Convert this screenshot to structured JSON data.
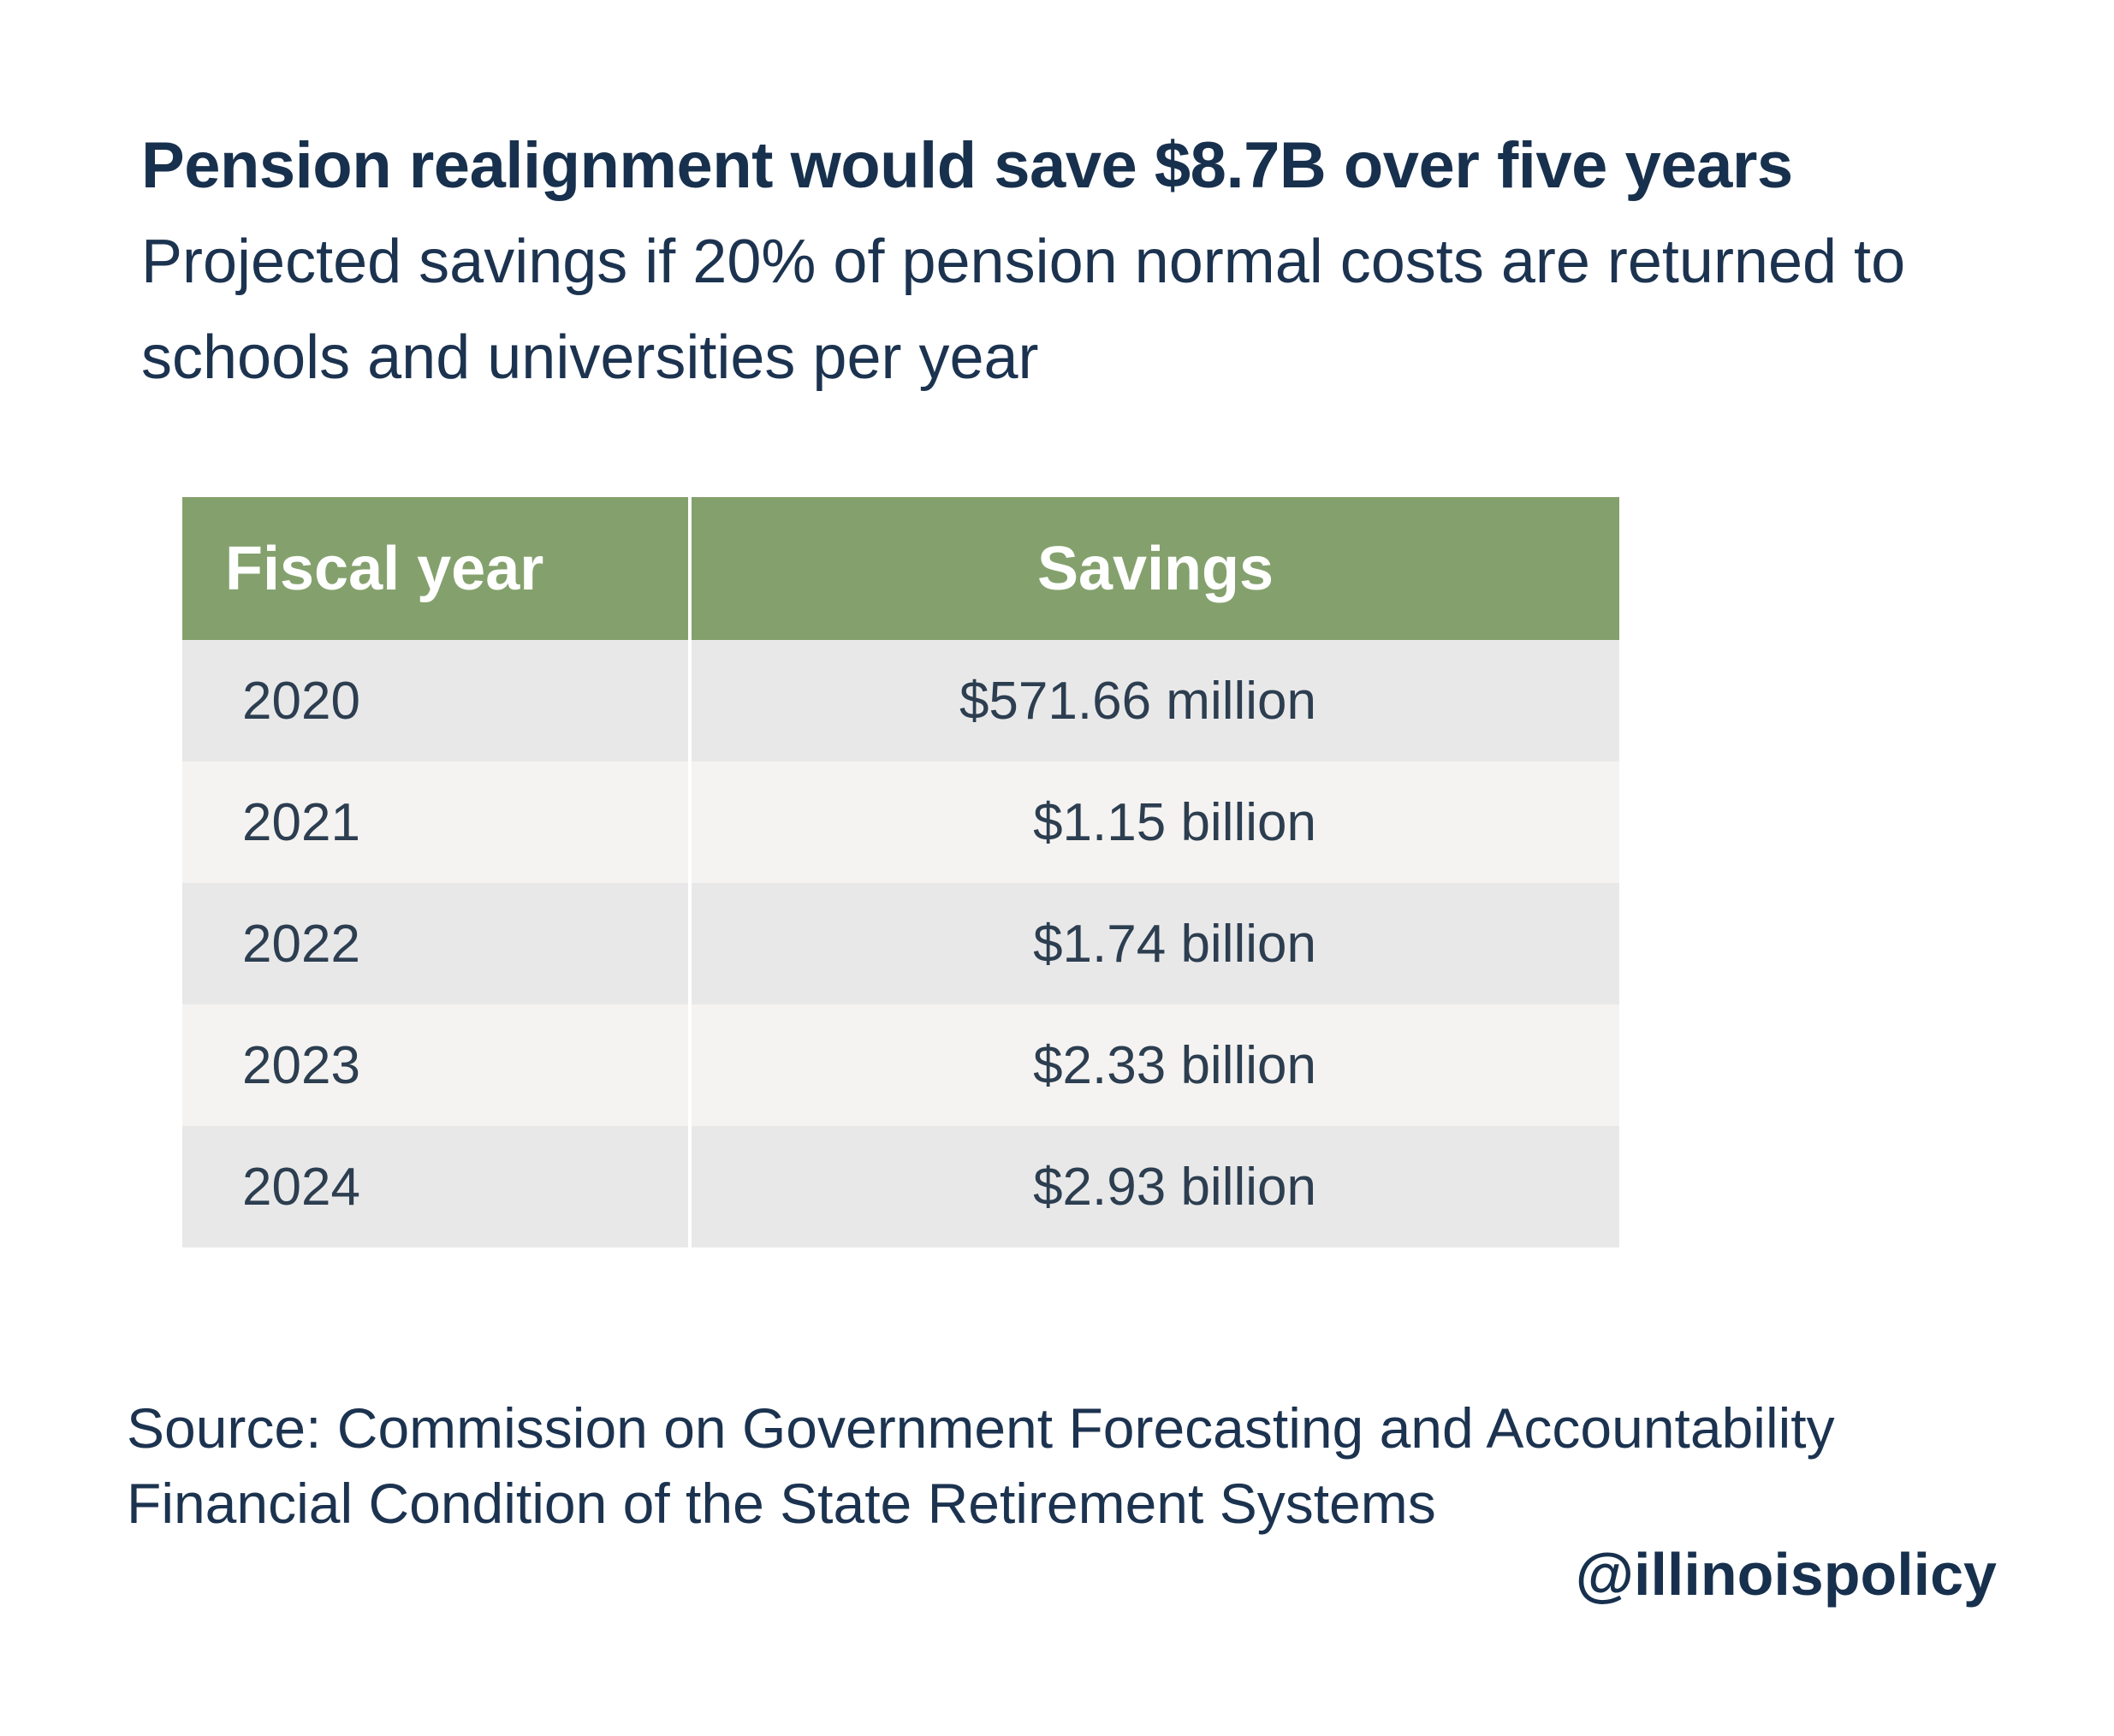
{
  "header": {
    "title": "Pension realignment would save $8.7B over five years",
    "subtitle": "Projected savings if 20% of pension normal costs are returned to schools and universities per year"
  },
  "chart_data": {
    "type": "table",
    "columns": [
      "Fiscal year",
      "Savings"
    ],
    "rows": [
      {
        "year": "2020",
        "savings": "$571.66 million"
      },
      {
        "year": "2021",
        "savings": "$1.15 billion"
      },
      {
        "year": "2022",
        "savings": "$1.74 billion"
      },
      {
        "year": "2023",
        "savings": "$2.33 billion"
      },
      {
        "year": "2024",
        "savings": "$2.93 billion"
      }
    ]
  },
  "footer": {
    "source_line1": "Source: Commission on Government Forecasting and Accountability",
    "source_line2": "Financial Condition of the State Retirement Systems",
    "handle": "@illinoispolicy"
  },
  "colors": {
    "header_bg": "#84a16d",
    "row_odd": "#e9e8e9",
    "row_even": "#f5f3f1",
    "title_text": "#17304d"
  }
}
